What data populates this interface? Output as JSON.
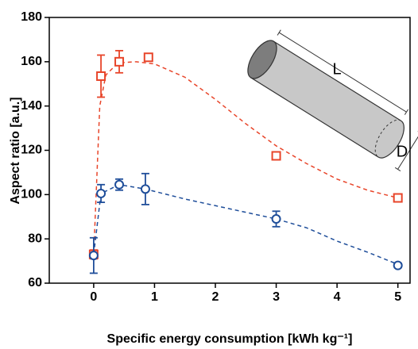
{
  "chart_data": {
    "type": "scatter",
    "x_label": "Specific energy consumption [kWh kg⁻¹]",
    "y_label": "Aspect ratio [a.u.]",
    "annotations": [
      "L",
      "D"
    ],
    "xlim": [
      -0.73,
      5.2
    ],
    "ylim": [
      60,
      180
    ],
    "xticks": [
      0,
      1,
      2,
      3,
      4,
      5
    ],
    "yticks": [
      60,
      80,
      100,
      120,
      140,
      160,
      180
    ],
    "series": [
      {
        "color": "#e8452a",
        "x": [
          0,
          0.12,
          0.42,
          0.9,
          3,
          5
        ],
        "values": [
          73,
          153.5,
          160,
          162,
          117.5,
          98.5
        ],
        "errors": [
          2,
          9.5,
          5,
          1,
          1,
          1
        ],
        "fit": {
          "x": [
            0,
            0.1,
            0.2,
            0.4,
            0.7,
            1,
            1.5,
            2,
            2.5,
            3,
            3.5,
            4,
            4.5,
            5
          ],
          "values": [
            73,
            140,
            154,
            159.5,
            160,
            159,
            153,
            143,
            132,
            122,
            114,
            107,
            102,
            98.5
          ]
        }
      },
      {
        "color": "#1f4e9a",
        "x": [
          0,
          0.12,
          0.42,
          0.85,
          3,
          5
        ],
        "values": [
          72.5,
          100.5,
          104.5,
          102.5,
          89,
          68
        ],
        "errors": [
          8,
          4,
          2.5,
          7,
          3.5,
          1
        ],
        "fit": {
          "x": [
            0,
            0.12,
            0.42,
            0.85,
            1.5,
            2,
            2.5,
            3,
            3.5,
            4,
            4.5,
            5
          ],
          "values": [
            73,
            100.5,
            104.5,
            102.5,
            98,
            95,
            92,
            89,
            85,
            79,
            74,
            68.5
          ]
        }
      }
    ]
  }
}
